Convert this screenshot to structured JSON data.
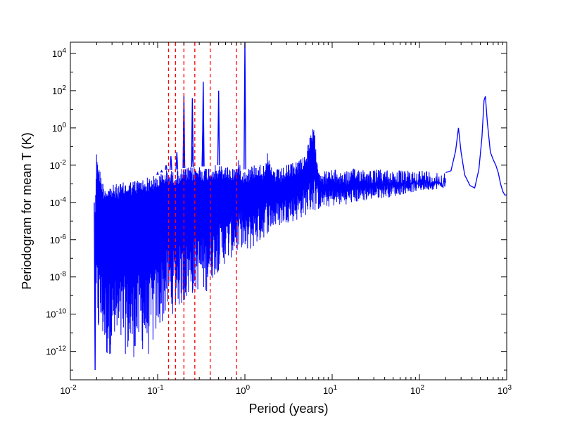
{
  "chart_data": {
    "type": "line",
    "xlabel": "Period (years)",
    "ylabel": "Periodogram for mean T (K)",
    "xscale": "log",
    "yscale": "log",
    "xlim": [
      0.01,
      1000
    ],
    "ylim": [
      3e-14,
      40000
    ],
    "grid": false,
    "legend": "none",
    "series": [
      {
        "color": "#0000ff",
        "style": "solid",
        "envelope": {
          "x": [
            0.0192,
            0.02,
            0.0205,
            0.021,
            0.022,
            0.024,
            0.026,
            0.03,
            0.035,
            0.04,
            0.05,
            0.06,
            0.07,
            0.08,
            0.1,
            0.12,
            0.13,
            0.15,
            0.17,
            0.2,
            0.25,
            0.3,
            0.35,
            0.4,
            0.5,
            0.6,
            0.7,
            0.8,
            0.85,
            0.9,
            1.0,
            1.2,
            1.4,
            1.6,
            1.8,
            2.0,
            2.5,
            3.0,
            4.0,
            5.0,
            6.0,
            6.2,
            7.0,
            8.0,
            10,
            15,
            20,
            30,
            50,
            70,
            100,
            150,
            200
          ],
          "upper": [
            0.0001,
            0.07,
            0.04,
            0.01,
            0.005,
            0.001,
            0.0008,
            0.0009,
            0.001,
            0.0012,
            0.0015,
            0.0018,
            0.002,
            0.0025,
            0.003,
            0.005,
            0.006,
            0.005,
            0.006,
            0.007,
            0.008,
            0.01,
            0.008,
            0.01,
            0.01,
            0.01,
            0.008,
            0.01,
            0.02,
            0.01,
            0.006,
            0.01,
            0.015,
            0.01,
            0.05,
            0.008,
            0.006,
            0.01,
            0.02,
            0.05,
            1.2,
            0.8,
            0.01,
            0.005,
            0.006,
            0.005,
            0.008,
            0.006,
            0.006,
            0.005,
            0.006,
            0.005,
            0.004
          ],
          "lower": [
            1e-10,
            3e-12,
            1e-11,
            3e-12,
            5e-12,
            2e-12,
            3e-13,
            1e-12,
            5e-13,
            1e-12,
            3e-13,
            1e-12,
            1e-12,
            5e-13,
            1e-11,
            5e-11,
            1e-10,
            1e-10,
            2e-10,
            3e-10,
            1e-09,
            2e-09,
            1e-09,
            5e-09,
            2e-08,
            5e-08,
            1e-07,
            2e-07,
            1e-07,
            5e-07,
            1e-07,
            3e-07,
            5e-07,
            1e-06,
            2e-06,
            3e-06,
            5e-06,
            8e-06,
            1e-05,
            2e-05,
            3e-05,
            3e-05,
            4e-05,
            5e-05,
            6e-05,
            8e-05,
            0.0001,
            0.00015,
            0.0002,
            0.0003,
            0.0004,
            0.0005,
            0.0006
          ]
        },
        "spikes": [
          {
            "x": 0.0192,
            "y": 1e-13
          },
          {
            "x": 0.1,
            "y": 0.004
          },
          {
            "x": 0.111,
            "y": 0.005
          },
          {
            "x": 0.125,
            "y": 0.01
          },
          {
            "x": 0.142,
            "y": 0.03
          },
          {
            "x": 0.166,
            "y": 0.05
          },
          {
            "x": 0.2,
            "y": 50
          },
          {
            "x": 0.25,
            "y": 0.08
          },
          {
            "x": 0.33,
            "y": 1.0
          },
          {
            "x": 0.25,
            "y": 0.1
          },
          {
            "x": 0.5,
            "y": 100
          },
          {
            "x": 1.0,
            "y": 40000
          },
          {
            "x": 0.333,
            "y": 300
          },
          {
            "x": 0.25,
            "y": 40
          },
          {
            "x": 0.2,
            "y": 0.05
          }
        ],
        "curve": {
          "x": [
            200,
            230,
            260,
            280,
            300,
            330,
            380,
            430,
            480,
            520,
            550,
            570,
            600,
            650,
            700,
            750,
            800,
            850,
            900,
            950,
            1000
          ],
          "y": [
            0.004,
            0.005,
            0.06,
            1.0,
            0.05,
            0.003,
            0.0008,
            0.0006,
            0.006,
            0.3,
            30,
            50,
            2,
            0.05,
            0.02,
            0.01,
            0.004,
            0.001,
            0.0004,
            0.00025,
            0.00025
          ]
        }
      }
    ],
    "vlines": {
      "color": "#ff0000",
      "style": "dashed",
      "x": [
        0.1333,
        0.16,
        0.2,
        0.2667,
        0.4,
        0.8
      ]
    },
    "xticks": [
      {
        "base": "10",
        "exp": "-2",
        "value": 0.01
      },
      {
        "base": "10",
        "exp": "-1",
        "value": 0.1
      },
      {
        "base": "10",
        "exp": "0",
        "value": 1
      },
      {
        "base": "10",
        "exp": "1",
        "value": 10
      },
      {
        "base": "10",
        "exp": "2",
        "value": 100
      },
      {
        "base": "10",
        "exp": "3",
        "value": 1000
      }
    ],
    "yticks": [
      {
        "base": "10",
        "exp": "-12",
        "value": 1e-12
      },
      {
        "base": "10",
        "exp": "-10",
        "value": 1e-10
      },
      {
        "base": "10",
        "exp": "-8",
        "value": 1e-08
      },
      {
        "base": "10",
        "exp": "-6",
        "value": 1e-06
      },
      {
        "base": "10",
        "exp": "-4",
        "value": 0.0001
      },
      {
        "base": "10",
        "exp": "-2",
        "value": 0.01
      },
      {
        "base": "10",
        "exp": "0",
        "value": 1
      },
      {
        "base": "10",
        "exp": "2",
        "value": 100
      },
      {
        "base": "10",
        "exp": "4",
        "value": 10000
      }
    ]
  }
}
